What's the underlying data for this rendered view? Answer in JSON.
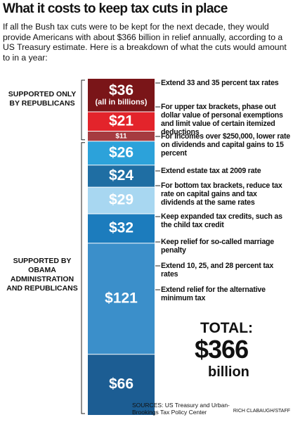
{
  "title": "What it costs to keep tax cuts in place",
  "intro": "If all the Bush tax cuts were to be kept for the next decade, they would provide Americans with about $366 billion in relief annually, according to a US Treasury estimate. Here is a breakdown of what the cuts would amount to in a year:",
  "chart_data": {
    "type": "stacked-column",
    "unit_note": "(all in billions)",
    "categories": [
      "Extend 33 and 35 percent tax rates",
      "For upper tax brackets, phase out dollar value of personal exemptions and limit value of certain itemized deductions",
      "For incomes over $250,000, lower rate on dividends and capital gains to 15 percent",
      "Extend estate tax at 2009 rate",
      "For bottom tax brackets, reduce tax rate on capital gains and tax dividends at the same rates",
      "Keep expanded tax credits, such as the child tax credit",
      "Keep relief for so-called marriage penalty",
      "Extend 10, 25, and 28 percent tax rates",
      "Extend relief for the alternative minimum tax"
    ],
    "values": [
      36,
      21,
      11,
      26,
      24,
      29,
      32,
      121,
      66
    ],
    "value_labels": [
      "$36",
      "$21",
      "$11",
      "$26",
      "$24",
      "$29",
      "$32",
      "$121",
      "$66"
    ],
    "colors": [
      "#7a1518",
      "#e3242b",
      "#a63b40",
      "#2ca2da",
      "#1f6ea3",
      "#a8d7f1",
      "#1c7cbd",
      "#3b8fca",
      "#1c5d93"
    ],
    "groups": [
      "SUPPORTED ONLY BY REPUBLICANS",
      "SUPPORTED BY OBAMA ADMINISTRATION AND REPUBLICANS"
    ],
    "total": {
      "label": "TOTAL:",
      "value": 366,
      "value_label": "$366",
      "unit": "billion"
    }
  },
  "sources": "SOURCES: US Treasury and Urban-Brookings Tax Policy Center",
  "credit": "RICH CLABAUGH/STAFF"
}
